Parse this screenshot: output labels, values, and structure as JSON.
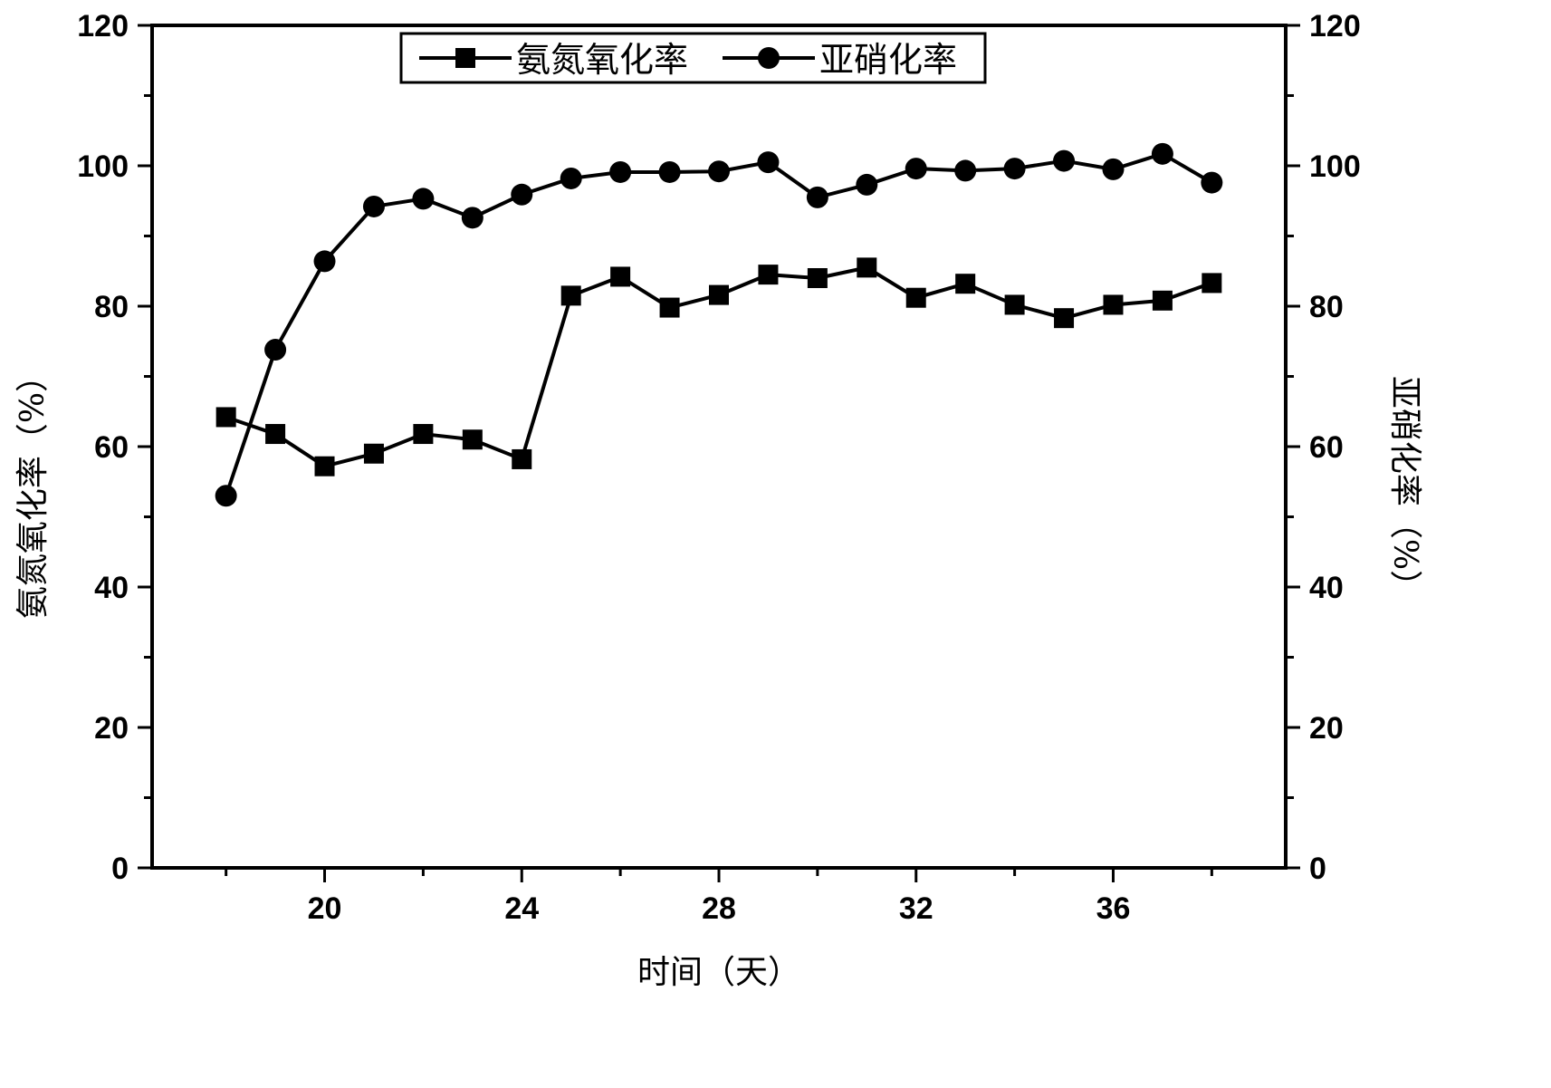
{
  "chart_data": {
    "type": "line",
    "x": [
      18,
      19,
      20,
      21,
      22,
      23,
      24,
      25,
      26,
      27,
      28,
      29,
      30,
      31,
      32,
      33,
      34,
      35,
      36,
      37,
      38
    ],
    "series": [
      {
        "name": "氨氮氧化率",
        "marker": "square",
        "axis": "left",
        "values": [
          64.2,
          61.8,
          57.2,
          59.0,
          61.8,
          61.0,
          58.2,
          81.5,
          84.2,
          79.8,
          81.6,
          84.5,
          84.0,
          85.5,
          81.2,
          83.2,
          80.2,
          78.3,
          80.2,
          80.8,
          83.3
        ]
      },
      {
        "name": "亚硝化率",
        "marker": "circle",
        "axis": "right",
        "values": [
          53.0,
          73.8,
          86.4,
          94.2,
          95.3,
          92.6,
          95.9,
          98.2,
          99.1,
          99.1,
          99.2,
          100.5,
          95.5,
          97.3,
          99.6,
          99.3,
          99.6,
          100.7,
          99.5,
          101.7,
          97.6
        ]
      }
    ],
    "xlabel": "时间（天）",
    "ylabel_left": "氨氮氧化率（%）",
    "ylabel_right": "亚硝化率（%）",
    "xlim": [
      16.5,
      39.5
    ],
    "ylim_left": [
      0,
      120
    ],
    "ylim_right": [
      0,
      120
    ],
    "x_ticks": [
      20,
      24,
      28,
      32,
      36
    ],
    "y_ticks": [
      0,
      20,
      40,
      60,
      80,
      100,
      120
    ],
    "x_minor_step": 2,
    "y_minor_step": 10,
    "grid": false,
    "legend_position": "top-center"
  }
}
